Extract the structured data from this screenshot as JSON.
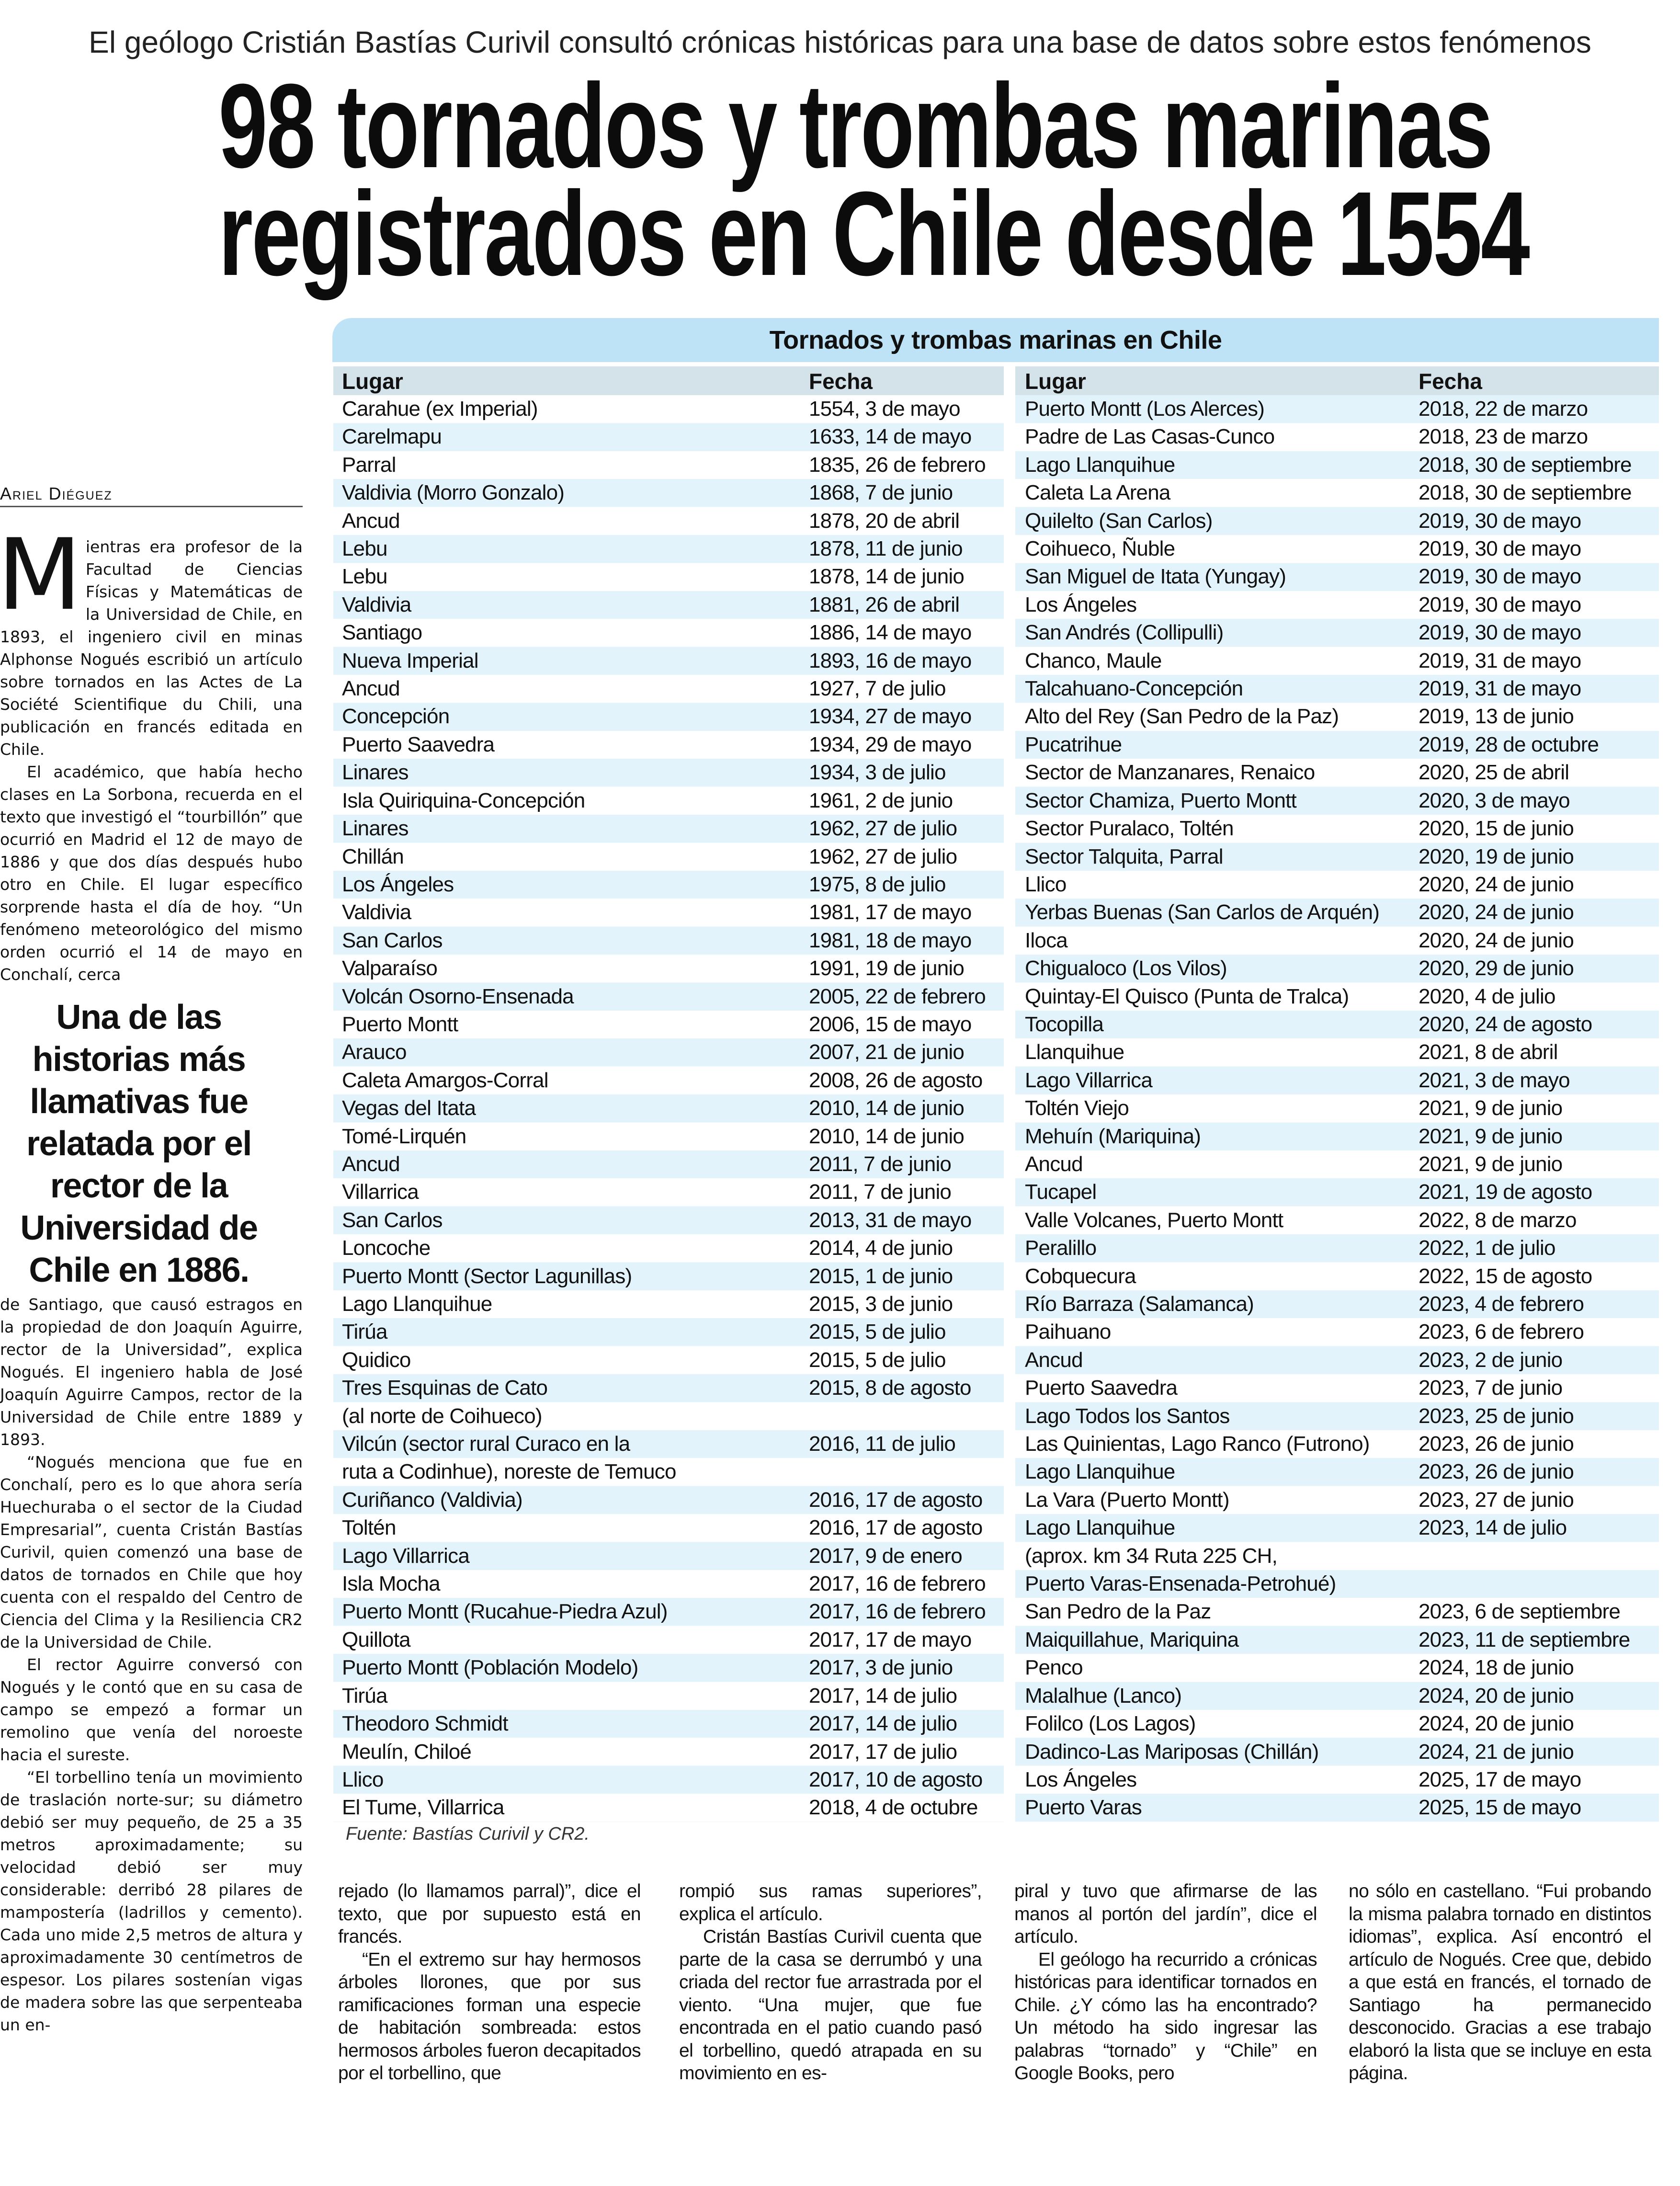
{
  "subtitle": "El geólogo Cristián Bastías Curivil consultó crónicas históricas para una base de datos sobre estos fenómenos",
  "headline": [
    "98 tornados y trombas marinas",
    "registrados en Chile desde 1554"
  ],
  "byline": "Ariel Diéguez",
  "colors": {
    "table_title_bg": "#bfe3f6",
    "table_header_bg": "#d4e2ea",
    "row_stripe": "#e2f3fb"
  },
  "left_column": {
    "dropcap": "M",
    "part1": [
      "ientras era profesor de la Facultad de Ciencias Físicas y Matemáticas de la Universidad de Chile, en 1893, el ingeniero civil en minas Alphonse Nogués escribió un artículo sobre tornados en las Actes de La Société Scientifique du Chili, una publicación en francés editada en Chile.",
      "El académico, que había hecho clases en La Sorbona, recuerda en el texto que investigó el “tourbillón” que ocurrió en Madrid el 12 de mayo de 1886 y que dos días después hubo otro en Chile. El lugar específico sorprende hasta el día de hoy. “Un fenómeno meteorológico del mismo orden ocurrió el 14 de mayo en Conchalí, cerca"
    ],
    "pullquote": "Una de las historias más llamativas fue relatada por el rector de la Universidad de Chile en 1886.",
    "part2": [
      "de Santiago, que causó estragos en la propiedad de don Joaquín Aguirre, rector de la Universidad”, explica Nogués. El ingeniero habla de José Joaquín Aguirre Campos, rector de la Universidad de Chile entre 1889 y 1893.",
      "“Nogués menciona que fue en Conchalí, pero es lo que ahora sería Huechuraba o el sector de la Ciudad Empresarial”, cuenta Cristán Bastías Curivil, quien comenzó una base de datos de tornados en Chile que hoy cuenta con el respaldo del Centro de Ciencia del Clima y la Resiliencia CR2 de la Universidad de Chile.",
      "El rector Aguirre conversó con Nogués y le contó que en su casa de campo se empezó a formar un remolino que venía del noroeste hacia el sureste.",
      "“El torbellino tenía un movimiento de traslación norte-sur; su diámetro debió ser muy pequeño, de 25 a 35 metros aproximadamente; su velocidad debió ser muy considerable: derribó 28 pilares de mampostería (ladrillos y cemento). Cada uno mide 2,5 metros de altura y aproximadamente 30 centímetros de espesor. Los pilares sostenían vigas de madera sobre las que serpenteaba un en-"
    ]
  },
  "bottom_columns": [
    [
      "rejado (lo llamamos parral)”, dice el texto, que por supuesto está en francés.",
      "“En el extremo sur hay hermosos árboles llorones, que por sus ramificaciones forman una especie de habitación sombreada: estos hermosos árboles fueron decapitados por el torbellino, que"
    ],
    [
      "rompió sus ramas superiores”, explica el artículo.",
      "Cristán Bastías Curivil cuenta que parte de la casa se derrumbó y una criada del rector fue arrastrada por el viento. “Una mujer, que fue encontrada en el patio cuando pasó el torbellino, quedó atrapada en su movimiento en es-"
    ],
    [
      "piral y tuvo que afirmarse de las manos al portón del jardín”, dice el artículo.",
      "El geólogo ha recurrido a crónicas históricas para identificar tornados en Chile. ¿Y cómo las ha encontrado? Un método ha sido ingresar las palabras “tornado” y “Chile” en Google Books, pero"
    ],
    [
      "no sólo en castellano. “Fui probando la misma palabra tornado en distintos idiomas”, explica. Así encontró el artículo de Nogués. Cree que, debido a que está en francés, el tornado de Santiago ha permanecido desconocido. Gracias a ese trabajo elaboró la lista que se incluye en esta página."
    ]
  ],
  "table": {
    "title": "Tornados y trombas marinas en Chile",
    "headers": {
      "lugar": "Lugar",
      "fecha": "Fecha"
    },
    "source": "Fuente: Bastías Curivil y CR2.",
    "left": [
      [
        [
          "Carahue (ex Imperial)"
        ],
        "1554, 3 de mayo"
      ],
      [
        [
          "Carelmapu"
        ],
        "1633, 14 de mayo"
      ],
      [
        [
          "Parral"
        ],
        "1835, 26 de febrero"
      ],
      [
        [
          "Valdivia (Morro Gonzalo)"
        ],
        "1868, 7 de junio"
      ],
      [
        [
          "Ancud"
        ],
        "1878, 20 de abril"
      ],
      [
        [
          "Lebu"
        ],
        "1878, 11 de junio"
      ],
      [
        [
          "Lebu"
        ],
        "1878, 14 de junio"
      ],
      [
        [
          "Valdivia"
        ],
        "1881, 26 de abril"
      ],
      [
        [
          "Santiago"
        ],
        "1886, 14 de mayo"
      ],
      [
        [
          "Nueva Imperial"
        ],
        "1893, 16 de mayo"
      ],
      [
        [
          "Ancud"
        ],
        "1927, 7 de julio"
      ],
      [
        [
          "Concepción"
        ],
        "1934, 27 de mayo"
      ],
      [
        [
          "Puerto Saavedra"
        ],
        "1934, 29 de mayo"
      ],
      [
        [
          "Linares"
        ],
        "1934, 3 de julio"
      ],
      [
        [
          "Isla Quiriquina-Concepción"
        ],
        "1961, 2 de junio"
      ],
      [
        [
          "Linares"
        ],
        "1962, 27 de julio"
      ],
      [
        [
          "Chillán"
        ],
        "1962, 27 de julio"
      ],
      [
        [
          "Los Ángeles"
        ],
        "1975, 8 de julio"
      ],
      [
        [
          "Valdivia"
        ],
        "1981, 17 de mayo"
      ],
      [
        [
          "San Carlos"
        ],
        "1981, 18 de mayo"
      ],
      [
        [
          "Valparaíso"
        ],
        "1991, 19 de junio"
      ],
      [
        [
          "Volcán Osorno-Ensenada"
        ],
        "2005, 22 de febrero"
      ],
      [
        [
          "Puerto Montt"
        ],
        "2006, 15 de mayo"
      ],
      [
        [
          "Arauco"
        ],
        "2007, 21 de junio"
      ],
      [
        [
          "Caleta Amargos-Corral"
        ],
        "2008, 26 de agosto"
      ],
      [
        [
          "Vegas del Itata"
        ],
        "2010, 14 de junio"
      ],
      [
        [
          "Tomé-Lirquén"
        ],
        "2010, 14 de junio"
      ],
      [
        [
          "Ancud"
        ],
        "2011, 7 de junio"
      ],
      [
        [
          "Villarrica"
        ],
        "2011, 7 de junio"
      ],
      [
        [
          "San Carlos"
        ],
        "2013, 31 de mayo"
      ],
      [
        [
          "Loncoche"
        ],
        "2014, 4 de junio"
      ],
      [
        [
          "Puerto Montt (Sector Lagunillas)"
        ],
        "2015, 1 de junio"
      ],
      [
        [
          "Lago Llanquihue"
        ],
        "2015, 3 de junio"
      ],
      [
        [
          "Tirúa"
        ],
        "2015, 5 de julio"
      ],
      [
        [
          "Quidico"
        ],
        "2015, 5 de julio"
      ],
      [
        [
          "Tres Esquinas de Cato",
          "(al norte de Coihueco)"
        ],
        "2015, 8 de agosto"
      ],
      [
        [
          "Vilcún (sector rural Curaco en la",
          "ruta a Codinhue), noreste de Temuco"
        ],
        "2016, 11 de julio"
      ],
      [
        [
          "Curiñanco (Valdivia)"
        ],
        "2016, 17 de agosto"
      ],
      [
        [
          "Toltén"
        ],
        "2016, 17 de agosto"
      ],
      [
        [
          "Lago Villarrica"
        ],
        "2017, 9 de enero"
      ],
      [
        [
          "Isla Mocha"
        ],
        "2017, 16 de febrero"
      ],
      [
        [
          "Puerto Montt (Rucahue-Piedra Azul)"
        ],
        "2017, 16 de febrero"
      ],
      [
        [
          "Quillota"
        ],
        "2017, 17 de mayo"
      ],
      [
        [
          "Puerto Montt (Población Modelo)"
        ],
        "2017, 3 de junio"
      ],
      [
        [
          "Tirúa"
        ],
        "2017, 14 de julio"
      ],
      [
        [
          "Theodoro Schmidt"
        ],
        "2017, 14 de julio"
      ],
      [
        [
          "Meulín, Chiloé"
        ],
        "2017, 17 de julio"
      ],
      [
        [
          "Llico"
        ],
        "2017, 10 de agosto"
      ],
      [
        [
          "El Tume, Villarrica"
        ],
        "2018, 4 de octubre"
      ]
    ],
    "right": [
      [
        [
          "Puerto Montt (Los Alerces)"
        ],
        "2018, 22 de marzo"
      ],
      [
        [
          "Padre de Las Casas-Cunco"
        ],
        "2018, 23 de marzo"
      ],
      [
        [
          "Lago Llanquihue"
        ],
        "2018, 30 de septiembre"
      ],
      [
        [
          "Caleta La Arena"
        ],
        "2018, 30 de septiembre"
      ],
      [
        [
          "Quilelto (San Carlos)"
        ],
        "2019, 30 de mayo"
      ],
      [
        [
          "Coihueco, Ñuble"
        ],
        "2019, 30 de mayo"
      ],
      [
        [
          "San Miguel de Itata (Yungay)"
        ],
        "2019, 30 de mayo"
      ],
      [
        [
          "Los Ángeles"
        ],
        "2019, 30 de mayo"
      ],
      [
        [
          "San Andrés (Collipulli)"
        ],
        "2019, 30 de mayo"
      ],
      [
        [
          "Chanco, Maule"
        ],
        "2019, 31 de mayo"
      ],
      [
        [
          "Talcahuano-Concepción"
        ],
        "2019, 31 de mayo"
      ],
      [
        [
          "Alto del Rey (San Pedro de la Paz)"
        ],
        "2019, 13 de junio"
      ],
      [
        [
          "Pucatrihue"
        ],
        "2019, 28 de octubre"
      ],
      [
        [
          "Sector de Manzanares, Renaico"
        ],
        "2020, 25 de abril"
      ],
      [
        [
          "Sector Chamiza, Puerto Montt"
        ],
        "2020, 3 de mayo"
      ],
      [
        [
          "Sector Puralaco, Toltén"
        ],
        "2020, 15 de junio"
      ],
      [
        [
          "Sector Talquita, Parral"
        ],
        "2020, 19 de junio"
      ],
      [
        [
          "Llico"
        ],
        "2020, 24 de junio"
      ],
      [
        [
          "Yerbas Buenas (San Carlos de Arquén)"
        ],
        "2020, 24 de junio"
      ],
      [
        [
          "Iloca"
        ],
        "2020, 24 de junio"
      ],
      [
        [
          "Chigualoco (Los Vilos)"
        ],
        "2020, 29 de junio"
      ],
      [
        [
          "Quintay-El Quisco (Punta de Tralca)"
        ],
        "2020, 4 de julio"
      ],
      [
        [
          "Tocopilla"
        ],
        "2020, 24 de agosto"
      ],
      [
        [
          "Llanquihue"
        ],
        "2021, 8 de abril"
      ],
      [
        [
          "Lago Villarrica"
        ],
        "2021, 3 de mayo"
      ],
      [
        [
          "Toltén Viejo"
        ],
        "2021, 9 de junio"
      ],
      [
        [
          "Mehuín (Mariquina)"
        ],
        "2021, 9 de junio"
      ],
      [
        [
          "Ancud"
        ],
        "2021, 9 de junio"
      ],
      [
        [
          "Tucapel"
        ],
        "2021, 19 de agosto"
      ],
      [
        [
          "Valle Volcanes, Puerto Montt"
        ],
        "2022, 8 de marzo"
      ],
      [
        [
          "Peralillo"
        ],
        "2022, 1 de julio"
      ],
      [
        [
          "Cobquecura"
        ],
        "2022, 15 de agosto"
      ],
      [
        [
          "Río Barraza (Salamanca)"
        ],
        "2023, 4 de febrero"
      ],
      [
        [
          "Paihuano"
        ],
        "2023, 6 de febrero"
      ],
      [
        [
          "Ancud"
        ],
        "2023, 2 de junio"
      ],
      [
        [
          "Puerto Saavedra"
        ],
        "2023, 7 de junio"
      ],
      [
        [
          "Lago Todos los Santos"
        ],
        "2023, 25 de junio"
      ],
      [
        [
          "Las Quinientas, Lago Ranco (Futrono)"
        ],
        "2023, 26 de junio"
      ],
      [
        [
          "Lago Llanquihue"
        ],
        "2023, 26 de junio"
      ],
      [
        [
          "La Vara (Puerto Montt)"
        ],
        "2023, 27 de junio"
      ],
      [
        [
          "Lago Llanquihue",
          "(aprox. km 34 Ruta 225 CH,",
          "Puerto Varas-Ensenada-Petrohué)"
        ],
        "2023, 14 de julio"
      ],
      [
        [
          "San Pedro de la Paz"
        ],
        "2023, 6 de septiembre"
      ],
      [
        [
          "Maiquillahue, Mariquina"
        ],
        "2023, 11 de septiembre"
      ],
      [
        [
          "Penco"
        ],
        "2024, 18 de junio"
      ],
      [
        [
          "Malalhue (Lanco)"
        ],
        "2024, 20 de junio"
      ],
      [
        [
          "Folilco (Los Lagos)"
        ],
        "2024, 20 de junio"
      ],
      [
        [
          "Dadinco-Las Mariposas (Chillán)"
        ],
        "2024, 21 de junio"
      ],
      [
        [
          "Los Ángeles"
        ],
        "2025, 17 de mayo"
      ],
      [
        [
          "Puerto Varas"
        ],
        "2025, 15 de mayo"
      ]
    ]
  }
}
